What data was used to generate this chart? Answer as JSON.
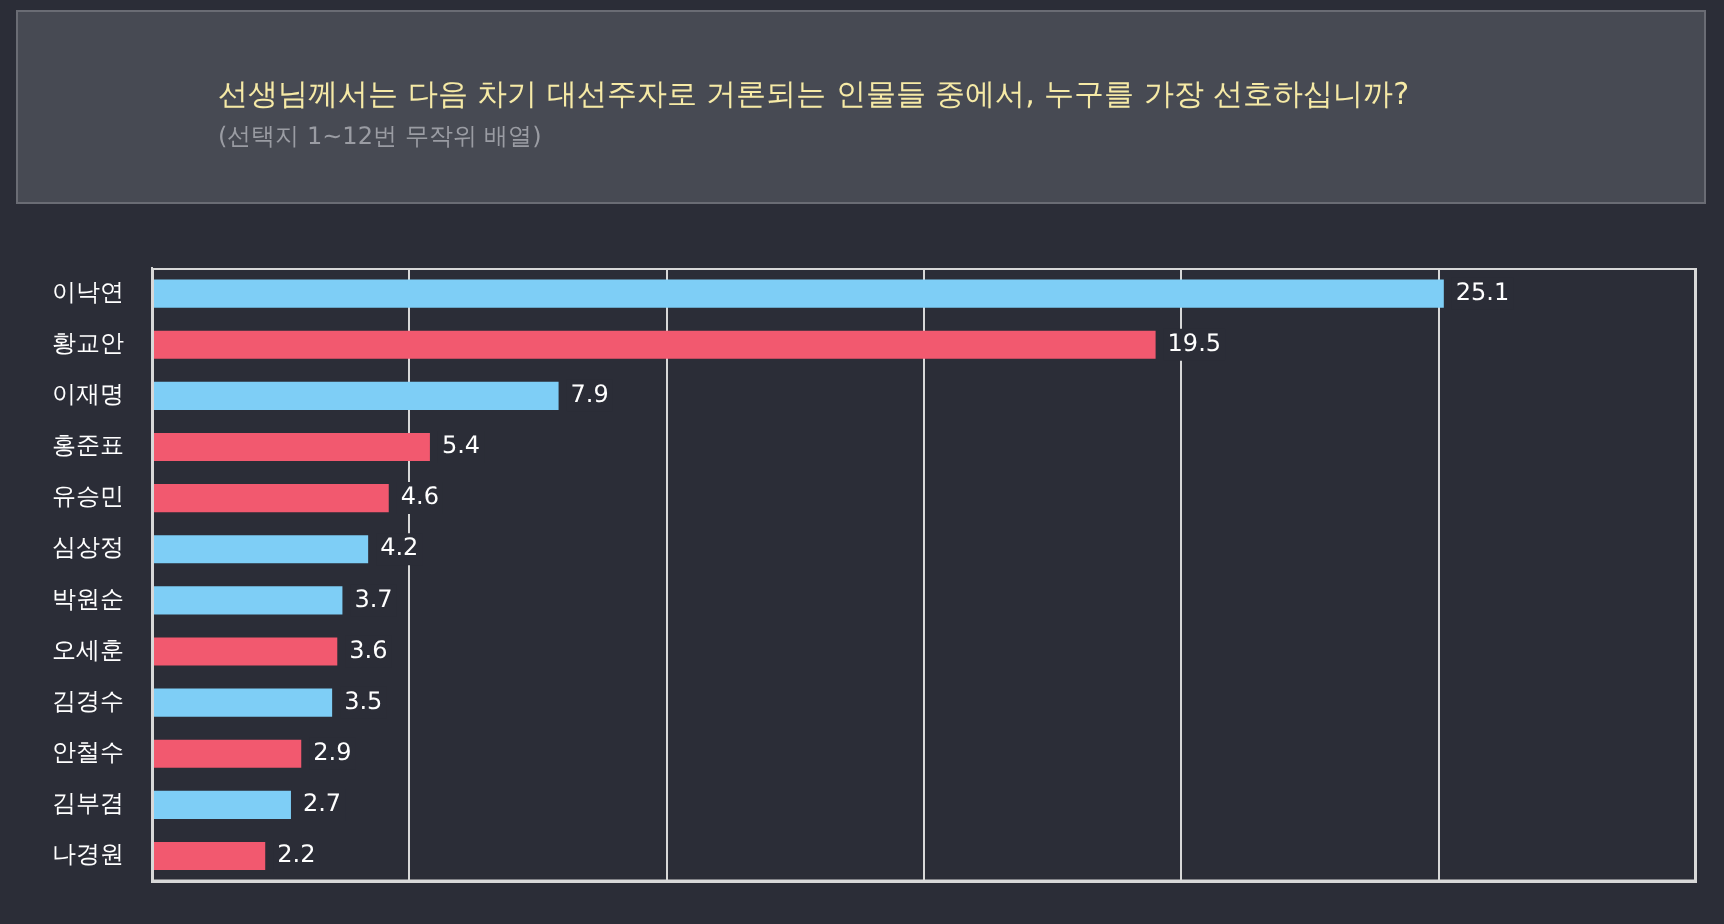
{
  "chart_data": {
    "type": "bar",
    "orientation": "horizontal",
    "title": "선생님께서는 다음 차기 대선주자로 거론되는 인물들 중에서, 누구를 가장 선호하십니까?",
    "subtitle": "(선택지 1~12번 무작위 배열)",
    "categories": [
      "이낙연",
      "황교안",
      "이재명",
      "홍준표",
      "유승민",
      "심상정",
      "박원순",
      "오세훈",
      "김경수",
      "안철수",
      "김부겸",
      "나경원"
    ],
    "values": [
      25.1,
      19.5,
      7.9,
      5.4,
      4.6,
      4.2,
      3.7,
      3.6,
      3.5,
      2.9,
      2.7,
      2.2
    ],
    "colors": [
      "#7ecef6",
      "#f2596f",
      "#7ecef6",
      "#f2596f",
      "#f2596f",
      "#7ecef6",
      "#7ecef6",
      "#f2596f",
      "#7ecef6",
      "#f2596f",
      "#7ecef6",
      "#f2596f"
    ],
    "tick_labels": "y",
    "grid": "x",
    "legend": false,
    "data_labels": true
  }
}
